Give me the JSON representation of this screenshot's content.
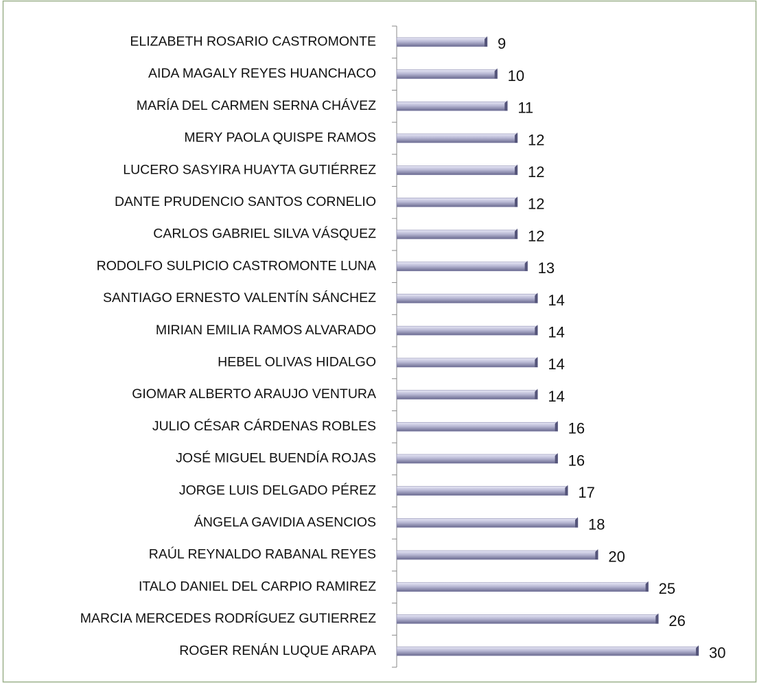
{
  "chart_data": {
    "type": "bar",
    "orientation": "horizontal",
    "color": "#8a8ab0",
    "categories": [
      "ELIZABETH ROSARIO CASTROMONTE",
      "AIDA MAGALY REYES HUANCHACO",
      "MARÍA DEL CARMEN SERNA CHÁVEZ",
      "MERY PAOLA QUISPE RAMOS",
      "LUCERO SASYIRA HUAYTA GUTIÉRREZ",
      "DANTE PRUDENCIO SANTOS CORNELIO",
      "CARLOS GABRIEL SILVA VÁSQUEZ",
      "RODOLFO SULPICIO CASTROMONTE LUNA",
      "SANTIAGO ERNESTO VALENTÍN SÁNCHEZ",
      "MIRIAN EMILIA RAMOS ALVARADO",
      "HEBEL OLIVAS HIDALGO",
      "GIOMAR ALBERTO ARAUJO VENTURA",
      "JULIO CÉSAR CÁRDENAS ROBLES",
      "JOSÉ MIGUEL BUENDÍA ROJAS",
      "JORGE LUIS DELGADO PÉREZ",
      "ÁNGELA GAVIDIA ASENCIOS",
      "RAÚL REYNALDO RABANAL REYES",
      "ITALO DANIEL DEL CARPIO RAMIREZ",
      "MARCIA MERCEDES RODRÍGUEZ GUTIERREZ",
      "ROGER RENÁN LUQUE ARAPA"
    ],
    "values": [
      9,
      10,
      11,
      12,
      12,
      12,
      12,
      13,
      14,
      14,
      14,
      14,
      16,
      16,
      17,
      18,
      20,
      25,
      26,
      30
    ]
  }
}
